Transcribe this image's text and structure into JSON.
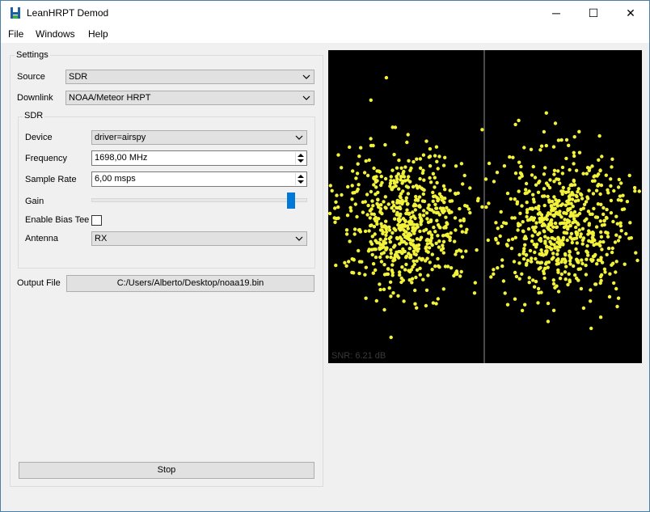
{
  "window": {
    "title": "LeanHRPT Demod",
    "minimize_glyph": "─",
    "maximize_glyph": "☐",
    "close_glyph": "✕"
  },
  "menu": [
    "File",
    "Windows",
    "Help"
  ],
  "settings": {
    "group_title": "Settings",
    "source_label": "Source",
    "source_value": "SDR",
    "downlink_label": "Downlink",
    "downlink_value": "NOAA/Meteor HRPT",
    "sdr": {
      "group_title": "SDR",
      "device_label": "Device",
      "device_value": "driver=airspy",
      "frequency_label": "Frequency",
      "frequency_value": "1698,00 MHz",
      "samplerate_label": "Sample Rate",
      "samplerate_value": "6,00 msps",
      "gain_label": "Gain",
      "gain_fraction": 0.95,
      "bias_tee_label": "Enable Bias Tee",
      "bias_tee_checked": false,
      "antenna_label": "Antenna",
      "antenna_value": "RX"
    },
    "output_label": "Output File",
    "output_value": "C:/Users/Alberto/Desktop/noaa19.bin",
    "stop_label": "Stop"
  },
  "constellation": {
    "snr_text": "SNR: 6.21 dB",
    "point_color": "#f2f23a",
    "background": "#000000",
    "divider_color": "#4a4a4a"
  },
  "colors": {
    "accent": "#0078d7",
    "icon_blue": "#1e5fa8",
    "icon_green": "#3fae49"
  }
}
